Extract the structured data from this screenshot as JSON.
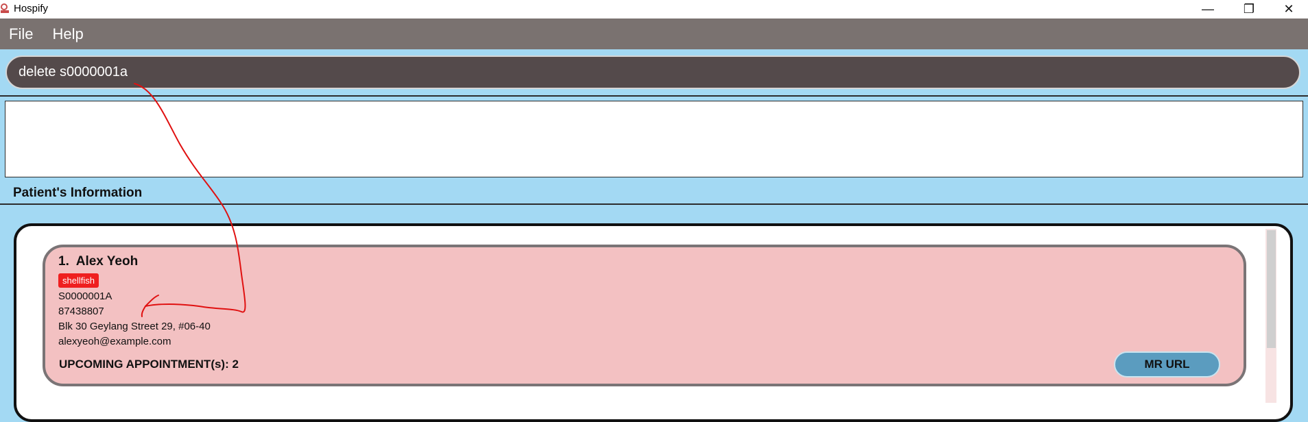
{
  "window": {
    "title": "Hospify",
    "minimize_glyph": "—",
    "restore_glyph": "❐",
    "close_glyph": "✕"
  },
  "menu": {
    "items": [
      "File",
      "Help"
    ]
  },
  "command": {
    "value": "delete s0000001a"
  },
  "result": {
    "text": ""
  },
  "section": {
    "title": "Patient's Information"
  },
  "patients": [
    {
      "index": "1.",
      "name": "Alex Yeoh",
      "tag": "shellfish",
      "nric": "S0000001A",
      "phone": "87438807",
      "address": "Blk 30 Geylang Street 29, #06-40",
      "email": "alexyeoh@example.com",
      "appointments_label": "UPCOMING APPOINTMENT(s): 2",
      "mr_button": "MR URL"
    }
  ],
  "colors": {
    "background": "#a3d9f3",
    "menubar": "#7a7270",
    "command_bg": "#544a4b",
    "card_bg": "#f3c1c2",
    "tag_bg": "#ef1f1f",
    "mr_button_bg": "#5b9cbf",
    "annotation": "#e01010"
  }
}
